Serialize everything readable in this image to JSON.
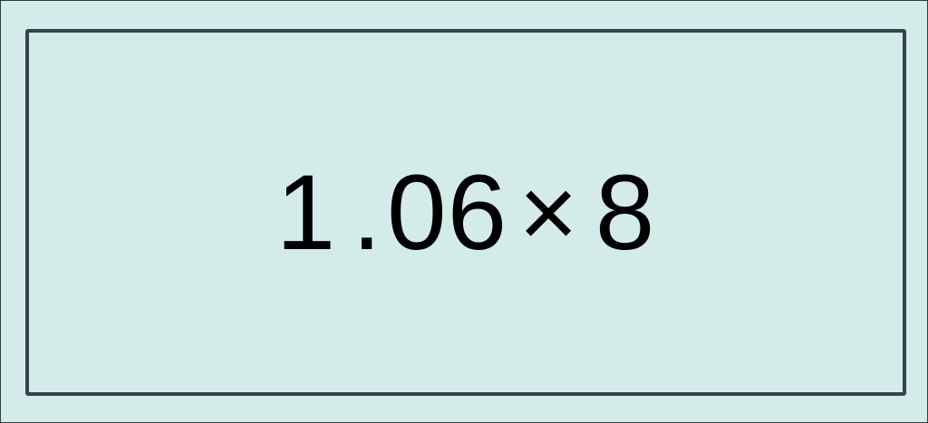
{
  "expression": {
    "integer_part": "1.",
    "decimal_part": "06",
    "operator": "×",
    "multiplier": "8"
  },
  "colors": {
    "background": "#d3ece9",
    "border": "#35434c",
    "text": "#000000"
  }
}
